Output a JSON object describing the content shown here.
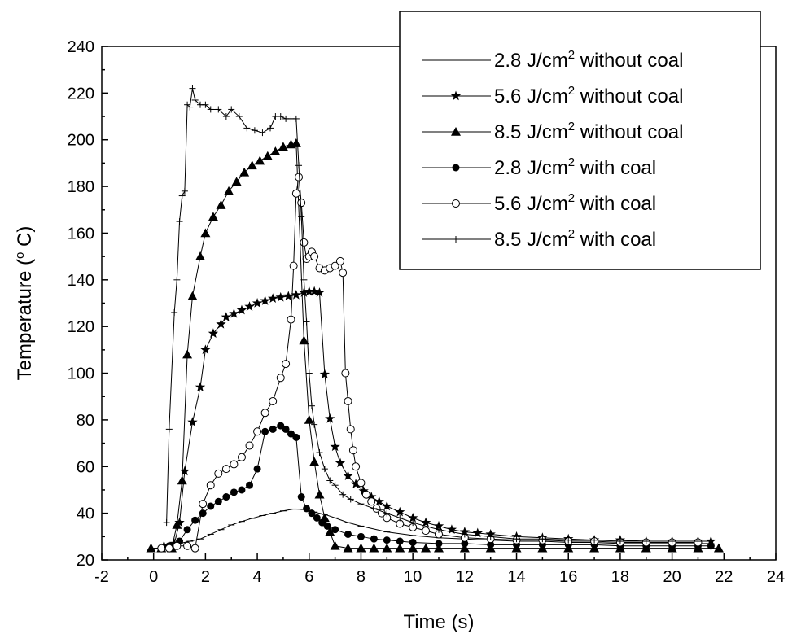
{
  "chart_data": {
    "type": "line",
    "title": "",
    "xlabel": "Time (s)",
    "ylabel": "Temperature (",
    "ylabel_sup": "o",
    "ylabel_tail": " C)",
    "xlim": [
      -2,
      24
    ],
    "ylim": [
      20,
      240
    ],
    "x_ticks": [
      -2,
      0,
      2,
      4,
      6,
      8,
      10,
      12,
      14,
      16,
      18,
      20,
      22,
      24
    ],
    "y_ticks": [
      20,
      40,
      60,
      80,
      100,
      120,
      140,
      160,
      180,
      200,
      220,
      240
    ],
    "x_tick_labels": [
      "-2",
      "0",
      "2",
      "4",
      "6",
      "8",
      "10",
      "12",
      "14",
      "16",
      "18",
      "20",
      "22",
      "24"
    ],
    "y_tick_labels": [
      "20",
      "40",
      "60",
      "80",
      "100",
      "120",
      "140",
      "160",
      "180",
      "200",
      "220",
      "240"
    ],
    "grid": false,
    "legend_position": "top-right",
    "series": [
      {
        "name": "2.8 J/cm",
        "name_sup": "2",
        "name_tail": " without coal",
        "marker": "tick",
        "x": [
          0.1,
          0.6,
          1.0,
          1.4,
          1.8,
          2.2,
          2.6,
          3.0,
          3.4,
          3.8,
          4.2,
          4.6,
          5.0,
          5.4,
          5.8,
          6.2,
          6.6,
          7.0,
          7.5,
          8,
          9,
          10,
          11,
          12,
          13,
          14,
          15,
          16,
          17,
          18,
          19,
          20,
          21,
          21.5
        ],
        "y": [
          25,
          26,
          27,
          28,
          29,
          31,
          33,
          35,
          36.5,
          37.8,
          39,
          40,
          41,
          41.8,
          41.6,
          40.5,
          39.5,
          38,
          36,
          34.5,
          32,
          30.5,
          29.5,
          29,
          28.5,
          28,
          28,
          27.5,
          27.5,
          27,
          27,
          27,
          27,
          27
        ]
      },
      {
        "name": "5.6 J/cm",
        "name_sup": "2",
        "name_tail": " without coal",
        "marker": "star",
        "x": [
          0.4,
          0.8,
          1.0,
          1.2,
          1.5,
          1.8,
          2.0,
          2.3,
          2.6,
          2.8,
          3.1,
          3.4,
          3.7,
          4.0,
          4.3,
          4.6,
          4.9,
          5.2,
          5.5,
          5.8,
          6.0,
          6.2,
          6.4,
          6.6,
          6.8,
          7.0,
          7.2,
          7.5,
          7.8,
          8.1,
          8.4,
          8.7,
          9.0,
          9.5,
          10,
          10.5,
          11,
          11.5,
          12,
          12.5,
          13,
          14,
          15,
          16,
          17,
          18,
          19,
          20,
          21,
          21.5
        ],
        "y": [
          26,
          27,
          36,
          58,
          79,
          94,
          110,
          117,
          121,
          124,
          125.5,
          127,
          128.5,
          130,
          131,
          132,
          132.5,
          133,
          133.5,
          134.5,
          135,
          135,
          134.5,
          99.5,
          80.5,
          68.5,
          61.5,
          56,
          52.5,
          49.5,
          47,
          45,
          43,
          40.5,
          38,
          36,
          34.5,
          33,
          32,
          31.5,
          31,
          30,
          29.5,
          29,
          28.5,
          28.5,
          28,
          28,
          28,
          28
        ]
      },
      {
        "name": "8.5 J/cm",
        "name_sup": "2",
        "name_tail": " without coal",
        "marker": "triangle",
        "x": [
          -0.1,
          0.3,
          0.7,
          0.9,
          1.1,
          1.3,
          1.5,
          1.8,
          2.0,
          2.3,
          2.6,
          2.9,
          3.2,
          3.5,
          3.8,
          4.1,
          4.4,
          4.7,
          5.0,
          5.3,
          5.5,
          5.8,
          6.0,
          6.2,
          6.4,
          6.6,
          6.8,
          7.0,
          7.5,
          8,
          8.5,
          9,
          9.5,
          10,
          10.5,
          11,
          12,
          13,
          14,
          15,
          16,
          17,
          18,
          19,
          20,
          21,
          21.8
        ],
        "y": [
          25,
          25,
          25,
          35,
          54,
          108,
          133,
          150,
          160,
          167,
          172,
          178,
          182,
          186,
          189,
          191,
          193,
          195,
          197,
          198,
          198.5,
          114,
          80,
          62,
          48,
          38,
          32,
          26,
          25,
          25,
          25,
          25,
          25,
          25,
          25,
          25,
          25,
          25,
          25,
          25,
          25,
          25,
          25,
          25,
          25,
          25,
          25
        ]
      },
      {
        "name": "2.8 J/cm",
        "name_sup": "2",
        "name_tail": " with coal",
        "marker": "circle-filled",
        "x": [
          0.3,
          0.6,
          1.0,
          1.3,
          1.6,
          1.9,
          2.2,
          2.5,
          2.8,
          3.1,
          3.4,
          3.7,
          4.0,
          4.3,
          4.6,
          4.9,
          5.1,
          5.3,
          5.5,
          5.7,
          5.9,
          6.1,
          6.3,
          6.5,
          6.7,
          7.0,
          7.5,
          8,
          8.5,
          9,
          9.5,
          10,
          11,
          12,
          13,
          14,
          15,
          16,
          17,
          18,
          19,
          20,
          21,
          21.5
        ],
        "y": [
          25,
          26,
          28,
          33,
          37,
          40,
          43,
          45,
          47,
          49,
          50,
          52,
          59,
          75,
          76,
          77.5,
          76,
          74,
          72.5,
          47,
          42,
          40,
          38,
          36,
          34.5,
          33,
          31,
          30,
          29,
          28.5,
          28,
          27.5,
          27,
          27,
          26.5,
          26.5,
          26.5,
          26.5,
          26.5,
          26,
          26,
          26,
          26,
          26
        ]
      },
      {
        "name": "5.6 J/cm",
        "name_sup": "2",
        "name_tail": " with coal",
        "marker": "circle-open",
        "x": [
          0.3,
          0.6,
          0.9,
          1.3,
          1.6,
          1.9,
          2.2,
          2.5,
          2.8,
          3.1,
          3.4,
          3.7,
          4.0,
          4.3,
          4.6,
          4.9,
          5.1,
          5.3,
          5.4,
          5.5,
          5.6,
          5.7,
          5.8,
          5.9,
          6.0,
          6.1,
          6.2,
          6.4,
          6.6,
          6.8,
          7.0,
          7.2,
          7.3,
          7.4,
          7.5,
          7.6,
          7.7,
          7.8,
          8,
          8.2,
          8.4,
          8.6,
          8.8,
          9,
          9.5,
          10,
          10.5,
          11,
          12,
          13,
          14,
          15,
          16,
          17,
          18,
          19,
          20,
          21
        ],
        "y": [
          25,
          25,
          26,
          26,
          25,
          44,
          52,
          57,
          59,
          61,
          64,
          69,
          75,
          83,
          88,
          98,
          104,
          123,
          146,
          177,
          184,
          173,
          156,
          149,
          150,
          152,
          150,
          145,
          144,
          145,
          146,
          148,
          143,
          100,
          88,
          76,
          67,
          60,
          53,
          48,
          45,
          42,
          40,
          38,
          35.5,
          34,
          32.5,
          31,
          29.5,
          29,
          28.5,
          28.5,
          28,
          28,
          27.5,
          27.5,
          27.5,
          27.5
        ]
      },
      {
        "name": "8.5 J/cm",
        "name_sup": "2",
        "name_tail": " with coal",
        "marker": "plus",
        "x": [
          0.5,
          0.6,
          0.8,
          0.9,
          1.0,
          1.1,
          1.2,
          1.3,
          1.4,
          1.5,
          1.6,
          1.8,
          2.0,
          2.2,
          2.5,
          2.8,
          3.0,
          3.3,
          3.6,
          3.9,
          4.2,
          4.5,
          4.7,
          4.9,
          5.1,
          5.3,
          5.5,
          5.6,
          5.7,
          5.8,
          5.9,
          6.0,
          6.1,
          6.2,
          6.4,
          6.6,
          6.8,
          7.0,
          7.3,
          7.6,
          8,
          8.5,
          9,
          9.5,
          10,
          11,
          12,
          13,
          14,
          15,
          16,
          17,
          18,
          19,
          20,
          21
        ],
        "y": [
          36,
          76,
          126,
          140,
          165,
          176,
          178,
          215,
          214,
          222,
          217,
          215,
          215,
          213,
          213,
          210,
          213,
          210,
          205,
          204,
          203,
          205,
          210,
          210,
          209,
          209,
          209,
          189,
          167,
          140,
          122,
          100,
          86,
          78,
          66,
          59,
          54,
          52,
          48,
          46,
          44,
          42,
          40,
          38,
          36,
          33,
          31,
          30,
          29,
          29,
          28.5,
          28.5,
          28,
          28,
          28,
          28
        ]
      }
    ]
  }
}
